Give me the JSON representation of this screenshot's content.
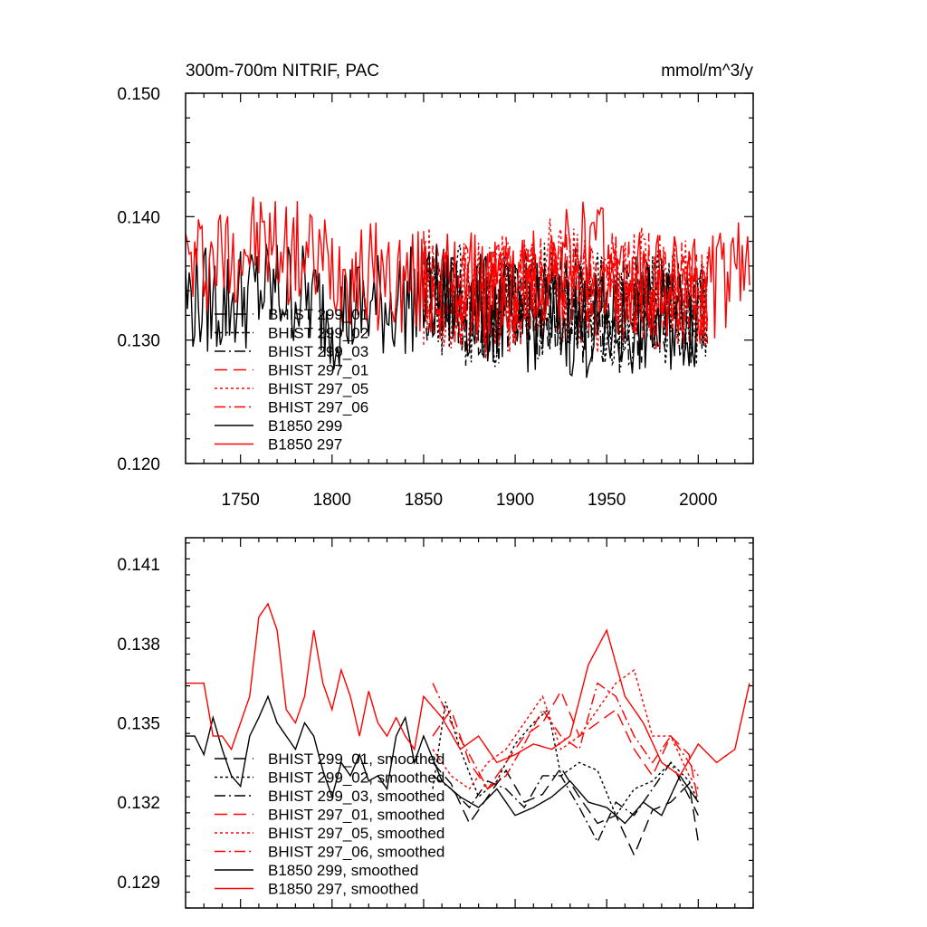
{
  "chart_data": [
    {
      "type": "line",
      "title_left": "300m-700m NITRIF, PAC",
      "title_right": "mmol/m^3/y",
      "xlim": [
        1720,
        2030
      ],
      "ylim": [
        0.12,
        0.15
      ],
      "x_ticks": [
        1750,
        1800,
        1850,
        1900,
        1950,
        2000
      ],
      "y_ticks": [
        0.12,
        0.13,
        0.14,
        0.15
      ],
      "y_tick_labels": [
        "0.120",
        "0.130",
        "0.140",
        "0.150"
      ],
      "x_tick_labels": [
        "1750",
        "1800",
        "1850",
        "1900",
        "1950",
        "2000"
      ],
      "legend_placement": "lower-left",
      "series": [
        {
          "name": "BHIST 299_01",
          "color": "#000000",
          "dash": "long-dash",
          "x_start": 1850,
          "x_end": 2005,
          "mean": 0.1325,
          "amplitude": 0.0045,
          "seed": 11,
          "x_key": [
            1850,
            1880,
            1900,
            1920,
            1940,
            1960,
            1980,
            2005
          ],
          "y_key": [
            0.1335,
            0.133,
            0.1325,
            0.1335,
            0.1328,
            0.1322,
            0.133,
            0.132
          ]
        },
        {
          "name": "BHIST 299_02",
          "color": "#000000",
          "dash": "dotted",
          "x_start": 1850,
          "x_end": 2005,
          "mean": 0.1325,
          "amplitude": 0.005,
          "seed": 23,
          "x_key": [
            1850,
            1880,
            1900,
            1920,
            1940,
            1960,
            1980,
            2005
          ],
          "y_key": [
            0.134,
            0.1325,
            0.133,
            0.133,
            0.132,
            0.1325,
            0.1328,
            0.1322
          ]
        },
        {
          "name": "BHIST 299_03",
          "color": "#000000",
          "dash": "dash-dot",
          "x_start": 1850,
          "x_end": 2005,
          "mean": 0.1325,
          "amplitude": 0.0045,
          "seed": 37,
          "x_key": [
            1850,
            1880,
            1900,
            1920,
            1940,
            1960,
            1980,
            2005
          ],
          "y_key": [
            0.133,
            0.132,
            0.133,
            0.1325,
            0.1325,
            0.1315,
            0.133,
            0.1318
          ]
        },
        {
          "name": "BHIST 297_01",
          "color": "#ff0000",
          "dash": "long-dash",
          "x_start": 1850,
          "x_end": 2005,
          "mean": 0.134,
          "amplitude": 0.0045,
          "seed": 41,
          "x_key": [
            1850,
            1880,
            1900,
            1920,
            1940,
            1960,
            1980,
            2005
          ],
          "y_key": [
            0.1345,
            0.1335,
            0.134,
            0.1345,
            0.134,
            0.1345,
            0.1335,
            0.133
          ]
        },
        {
          "name": "BHIST 297_05",
          "color": "#ff0000",
          "dash": "dotted",
          "x_start": 1850,
          "x_end": 2005,
          "mean": 0.134,
          "amplitude": 0.005,
          "seed": 53,
          "x_key": [
            1850,
            1880,
            1900,
            1920,
            1940,
            1960,
            1980,
            2005
          ],
          "y_key": [
            0.1345,
            0.133,
            0.134,
            0.135,
            0.1335,
            0.1352,
            0.134,
            0.133
          ]
        },
        {
          "name": "BHIST 297_06",
          "color": "#ff0000",
          "dash": "dash-dot",
          "x_start": 1850,
          "x_end": 2005,
          "mean": 0.134,
          "amplitude": 0.0045,
          "seed": 67,
          "x_key": [
            1850,
            1880,
            1900,
            1920,
            1940,
            1960,
            1980,
            2005
          ],
          "y_key": [
            0.135,
            0.1335,
            0.134,
            0.1345,
            0.134,
            0.1348,
            0.134,
            0.133
          ]
        },
        {
          "name": "B1850 299",
          "color": "#000000",
          "dash": "solid",
          "x_start": 1720,
          "x_end": 2000,
          "mean": 0.133,
          "amplitude": 0.0045,
          "seed": 79,
          "x_key": [
            1720,
            1740,
            1760,
            1780,
            1800,
            1830,
            1850,
            1900,
            1950,
            2000
          ],
          "y_key": [
            0.1335,
            0.133,
            0.134,
            0.134,
            0.132,
            0.133,
            0.1335,
            0.132,
            0.131,
            0.132
          ]
        },
        {
          "name": "B1850 297",
          "color": "#ff0000",
          "dash": "solid",
          "x_start": 1720,
          "x_end": 2028,
          "mean": 0.1345,
          "amplitude": 0.0045,
          "seed": 97,
          "x_key": [
            1720,
            1760,
            1790,
            1830,
            1850,
            1900,
            1940,
            1960,
            2000,
            2028
          ],
          "y_key": [
            0.136,
            0.138,
            0.1365,
            0.135,
            0.1345,
            0.134,
            0.1375,
            0.1345,
            0.134,
            0.1355
          ]
        }
      ]
    },
    {
      "type": "line",
      "xlim": [
        1720,
        2030
      ],
      "ylim": [
        0.128,
        0.142
      ],
      "x_ticks": [
        1750,
        1800,
        1850,
        1900,
        1950,
        2000
      ],
      "y_ticks": [
        0.129,
        0.132,
        0.135,
        0.138,
        0.141
      ],
      "y_tick_labels": [
        "0.129",
        "0.132",
        "0.135",
        "0.138",
        "0.141"
      ],
      "legend_placement": "lower-left",
      "series": [
        {
          "name": "BHIST 299_01, smoothed",
          "color": "#000000",
          "dash": "long-dash",
          "x_start": 1855,
          "x_end": 2000,
          "x_key": [
            1855,
            1865,
            1875,
            1885,
            1895,
            1905,
            1915,
            1925,
            1935,
            1945,
            1955,
            1965,
            1975,
            1985,
            1995,
            2000
          ],
          "y_key": [
            0.1335,
            0.1327,
            0.1312,
            0.1322,
            0.1332,
            0.132,
            0.1323,
            0.1333,
            0.1322,
            0.1312,
            0.1315,
            0.13,
            0.1317,
            0.132,
            0.1327,
            0.1305
          ]
        },
        {
          "name": "BHIST 299_02, smoothed",
          "color": "#000000",
          "dash": "dotted",
          "x_start": 1855,
          "x_end": 2000,
          "x_key": [
            1855,
            1862,
            1870,
            1880,
            1890,
            1900,
            1910,
            1918,
            1925,
            1935,
            1945,
            1955,
            1965,
            1975,
            1985,
            1995,
            2000
          ],
          "y_key": [
            0.1325,
            0.1358,
            0.134,
            0.1322,
            0.1328,
            0.1342,
            0.135,
            0.1355,
            0.133,
            0.1335,
            0.1332,
            0.1315,
            0.1325,
            0.1328,
            0.1335,
            0.1328,
            0.132
          ]
        },
        {
          "name": "BHIST 299_03, smoothed",
          "color": "#000000",
          "dash": "dash-dot",
          "x_start": 1855,
          "x_end": 2000,
          "x_key": [
            1855,
            1865,
            1875,
            1885,
            1895,
            1905,
            1915,
            1925,
            1935,
            1945,
            1955,
            1965,
            1975,
            1985,
            1995,
            2000
          ],
          "y_key": [
            0.133,
            0.1325,
            0.1318,
            0.1328,
            0.1325,
            0.1318,
            0.133,
            0.133,
            0.1318,
            0.1305,
            0.132,
            0.1315,
            0.1325,
            0.1335,
            0.1322,
            0.1315
          ]
        },
        {
          "name": "BHIST 297_01, smoothed",
          "color": "#ff0000",
          "dash": "long-dash",
          "x_start": 1855,
          "x_end": 2000,
          "x_key": [
            1855,
            1865,
            1875,
            1885,
            1895,
            1905,
            1915,
            1925,
            1935,
            1945,
            1955,
            1965,
            1975,
            1985,
            1995,
            2000
          ],
          "y_key": [
            0.1345,
            0.1355,
            0.1335,
            0.1325,
            0.1335,
            0.1345,
            0.135,
            0.1362,
            0.1345,
            0.135,
            0.1355,
            0.134,
            0.133,
            0.1345,
            0.1338,
            0.132
          ]
        },
        {
          "name": "BHIST 297_05, smoothed",
          "color": "#ff0000",
          "dash": "dotted",
          "x_start": 1855,
          "x_end": 2000,
          "x_key": [
            1855,
            1865,
            1875,
            1885,
            1895,
            1905,
            1915,
            1925,
            1935,
            1945,
            1955,
            1965,
            1975,
            1985,
            1995,
            2000
          ],
          "y_key": [
            0.134,
            0.133,
            0.1325,
            0.1335,
            0.134,
            0.135,
            0.136,
            0.134,
            0.1345,
            0.1355,
            0.1365,
            0.137,
            0.1345,
            0.1345,
            0.133,
            0.1325
          ]
        },
        {
          "name": "BHIST 297_06, smoothed",
          "color": "#ff0000",
          "dash": "dash-dot",
          "x_start": 1855,
          "x_end": 2000,
          "x_key": [
            1855,
            1865,
            1875,
            1885,
            1895,
            1905,
            1915,
            1925,
            1935,
            1945,
            1955,
            1965,
            1975,
            1985,
            1995,
            2000
          ],
          "y_key": [
            0.1365,
            0.135,
            0.1338,
            0.1325,
            0.133,
            0.1342,
            0.1355,
            0.1345,
            0.134,
            0.1365,
            0.136,
            0.1345,
            0.1335,
            0.1345,
            0.1335,
            0.133
          ]
        },
        {
          "name": "B1850 299, smoothed",
          "color": "#000000",
          "dash": "solid",
          "x_start": 1720,
          "x_end": 2000,
          "x_key": [
            1725,
            1730,
            1735,
            1740,
            1745,
            1750,
            1755,
            1760,
            1765,
            1770,
            1775,
            1780,
            1785,
            1790,
            1795,
            1800,
            1805,
            1810,
            1815,
            1820,
            1825,
            1830,
            1835,
            1840,
            1845,
            1850,
            1860,
            1870,
            1880,
            1890,
            1900,
            1910,
            1920,
            1930,
            1940,
            1950,
            1960,
            1970,
            1980,
            1990,
            2000
          ],
          "y_key": [
            0.1345,
            0.1338,
            0.1352,
            0.134,
            0.133,
            0.1326,
            0.1345,
            0.1352,
            0.136,
            0.135,
            0.1345,
            0.134,
            0.135,
            0.1345,
            0.1332,
            0.1322,
            0.1335,
            0.133,
            0.1338,
            0.1328,
            0.133,
            0.1325,
            0.1345,
            0.1352,
            0.1335,
            0.1345,
            0.1328,
            0.1322,
            0.1318,
            0.1325,
            0.1315,
            0.1318,
            0.1322,
            0.1328,
            0.132,
            0.1318,
            0.1312,
            0.132,
            0.1315,
            0.133,
            0.132
          ]
        },
        {
          "name": "B1850 297, smoothed",
          "color": "#ff0000",
          "dash": "solid",
          "x_start": 1720,
          "x_end": 2028,
          "x_key": [
            1725,
            1730,
            1735,
            1740,
            1745,
            1750,
            1755,
            1760,
            1765,
            1770,
            1775,
            1780,
            1785,
            1790,
            1795,
            1800,
            1805,
            1810,
            1815,
            1820,
            1825,
            1830,
            1835,
            1840,
            1845,
            1850,
            1860,
            1870,
            1880,
            1890,
            1900,
            1910,
            1920,
            1930,
            1940,
            1950,
            1960,
            1970,
            1980,
            1990,
            2000,
            2010,
            2020,
            2028
          ],
          "y_key": [
            0.1365,
            0.1365,
            0.1345,
            0.1345,
            0.134,
            0.135,
            0.136,
            0.139,
            0.1395,
            0.1385,
            0.1355,
            0.135,
            0.136,
            0.1385,
            0.1365,
            0.1355,
            0.137,
            0.136,
            0.1345,
            0.1362,
            0.135,
            0.1345,
            0.1352,
            0.1345,
            0.134,
            0.136,
            0.1352,
            0.134,
            0.1345,
            0.1335,
            0.1338,
            0.1342,
            0.134,
            0.1345,
            0.1372,
            0.1385,
            0.136,
            0.135,
            0.1335,
            0.133,
            0.1342,
            0.1335,
            0.134,
            0.1365
          ]
        }
      ]
    }
  ]
}
